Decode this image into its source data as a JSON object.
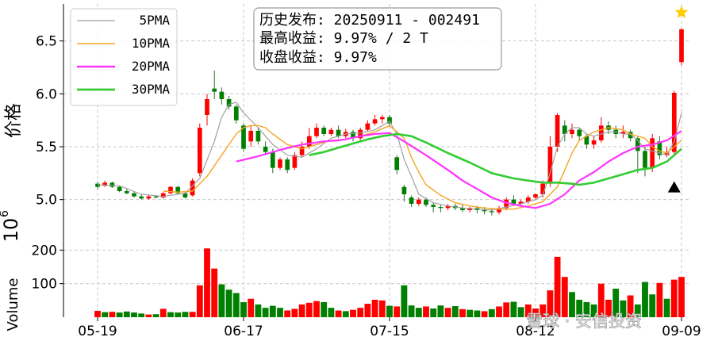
{
  "chart_data": {
    "type": "candlestick",
    "x_ticks": [
      "05-19",
      "06-17",
      "07-15",
      "08-12",
      "09-09"
    ],
    "price_axis": {
      "label": "价格",
      "ticks": [
        5.0,
        5.5,
        6.0,
        6.5
      ],
      "range": [
        4.75,
        6.85
      ]
    },
    "volume_axis": {
      "label": "Volume",
      "exponent": "10",
      "exponent_power": "6",
      "ticks": [
        100,
        200
      ],
      "range": [
        0,
        260
      ]
    },
    "legend": [
      {
        "name": "5PMA",
        "color": "#a0a0a0"
      },
      {
        "name": "10PMA",
        "color": "#f5a623"
      },
      {
        "name": "20PMA",
        "color": "#ff33ff"
      },
      {
        "name": "30PMA",
        "color": "#33cc33"
      }
    ],
    "info_box": [
      "历史发布: 20250911 - 002491",
      "最高收益: 9.97% / 2 T",
      "收盘收益: 9.97%"
    ],
    "colors": {
      "up": "#ff0000",
      "down": "#008000"
    },
    "star_marker": {
      "date_index": 80,
      "price": 6.77,
      "color": "#ffcc00"
    },
    "triangle_marker": {
      "date_index": 79,
      "price": 5.12,
      "color": "#000000"
    },
    "candles": [
      [
        5.15,
        5.12,
        5.17,
        5.1
      ],
      [
        5.13,
        5.16,
        5.18,
        5.12
      ],
      [
        5.16,
        5.12,
        5.17,
        5.11
      ],
      [
        5.12,
        5.08,
        5.13,
        5.07
      ],
      [
        5.08,
        5.06,
        5.1,
        5.05
      ],
      [
        5.06,
        5.03,
        5.07,
        5.02
      ],
      [
        5.03,
        5.01,
        5.05,
        5.0
      ],
      [
        5.01,
        5.03,
        5.04,
        5.0
      ],
      [
        5.03,
        5.02,
        5.04,
        5.01
      ],
      [
        5.02,
        5.06,
        5.07,
        5.01
      ],
      [
        5.06,
        5.12,
        5.13,
        5.05
      ],
      [
        5.12,
        5.06,
        5.13,
        5.05
      ],
      [
        5.06,
        5.02,
        5.08,
        5.01
      ],
      [
        5.04,
        5.18,
        5.2,
        5.03
      ],
      [
        5.25,
        5.68,
        5.72,
        5.22
      ],
      [
        5.8,
        5.95,
        6.0,
        5.7
      ],
      [
        6.05,
        6.02,
        6.22,
        5.95
      ],
      [
        6.02,
        5.95,
        6.06,
        5.9
      ],
      [
        5.95,
        5.88,
        5.98,
        5.85
      ],
      [
        5.88,
        5.75,
        5.9,
        5.72
      ],
      [
        5.7,
        5.48,
        5.72,
        5.45
      ],
      [
        5.55,
        5.65,
        5.7,
        5.5
      ],
      [
        5.65,
        5.55,
        5.68,
        5.52
      ],
      [
        5.5,
        5.45,
        5.55,
        5.42
      ],
      [
        5.45,
        5.3,
        5.48,
        5.25
      ],
      [
        5.3,
        5.38,
        5.4,
        5.28
      ],
      [
        5.38,
        5.28,
        5.4,
        5.25
      ],
      [
        5.3,
        5.42,
        5.45,
        5.28
      ],
      [
        5.42,
        5.5,
        5.55,
        5.4
      ],
      [
        5.5,
        5.6,
        5.68,
        5.48
      ],
      [
        5.6,
        5.68,
        5.72,
        5.58
      ],
      [
        5.68,
        5.62,
        5.7,
        5.6
      ],
      [
        5.62,
        5.66,
        5.68,
        5.6
      ],
      [
        5.66,
        5.6,
        5.7,
        5.58
      ],
      [
        5.6,
        5.64,
        5.67,
        5.58
      ],
      [
        5.64,
        5.58,
        5.66,
        5.55
      ],
      [
        5.58,
        5.66,
        5.68,
        5.56
      ],
      [
        5.66,
        5.72,
        5.75,
        5.64
      ],
      [
        5.72,
        5.76,
        5.8,
        5.7
      ],
      [
        5.76,
        5.78,
        5.8,
        5.72
      ],
      [
        5.78,
        5.72,
        5.8,
        5.7
      ],
      [
        5.4,
        5.28,
        5.42,
        5.24
      ],
      [
        5.12,
        5.05,
        5.14,
        4.98
      ],
      [
        5.02,
        4.96,
        5.04,
        4.93
      ],
      [
        4.96,
        5.0,
        5.02,
        4.94
      ],
      [
        5.0,
        4.95,
        5.02,
        4.93
      ],
      [
        4.95,
        4.93,
        4.97,
        4.88
      ],
      [
        4.93,
        4.92,
        4.95,
        4.88
      ],
      [
        4.92,
        4.94,
        4.96,
        4.9
      ],
      [
        4.94,
        4.92,
        4.96,
        4.9
      ],
      [
        4.92,
        4.9,
        4.95,
        4.88
      ],
      [
        4.9,
        4.92,
        4.93,
        4.88
      ],
      [
        4.92,
        4.9,
        4.94,
        4.87
      ],
      [
        4.9,
        4.89,
        4.93,
        4.86
      ],
      [
        4.89,
        4.88,
        4.92,
        4.85
      ],
      [
        4.88,
        4.92,
        4.94,
        4.86
      ],
      [
        4.92,
        5.0,
        5.02,
        4.9
      ],
      [
        5.0,
        4.96,
        5.04,
        4.94
      ],
      [
        4.96,
        4.98,
        5.0,
        4.94
      ],
      [
        4.98,
        5.02,
        5.04,
        4.96
      ],
      [
        5.02,
        5.05,
        5.06,
        5.0
      ],
      [
        5.05,
        5.15,
        5.18,
        5.02
      ],
      [
        5.15,
        5.5,
        5.6,
        5.12
      ],
      [
        5.5,
        5.8,
        5.82,
        5.45
      ],
      [
        5.7,
        5.62,
        5.75,
        5.55
      ],
      [
        5.62,
        5.66,
        5.72,
        5.58
      ],
      [
        5.66,
        5.6,
        5.68,
        5.56
      ],
      [
        5.6,
        5.52,
        5.62,
        5.48
      ],
      [
        5.52,
        5.56,
        5.6,
        5.48
      ],
      [
        5.56,
        5.7,
        5.78,
        5.54
      ],
      [
        5.7,
        5.66,
        5.74,
        5.62
      ],
      [
        5.66,
        5.62,
        5.7,
        5.58
      ],
      [
        5.62,
        5.64,
        5.7,
        5.58
      ],
      [
        5.64,
        5.58,
        5.66,
        5.55
      ],
      [
        5.58,
        5.46,
        5.6,
        5.25
      ],
      [
        5.46,
        5.3,
        5.5,
        5.22
      ],
      [
        5.3,
        5.58,
        5.62,
        5.26
      ],
      [
        5.55,
        5.42,
        5.6,
        5.38
      ],
      [
        5.42,
        5.45,
        5.5,
        5.4
      ],
      [
        5.45,
        6.01,
        6.03,
        5.42
      ],
      [
        6.3,
        6.61,
        6.62,
        6.27
      ]
    ],
    "ma5": [
      [
        0,
        5.14
      ],
      [
        3,
        5.13
      ],
      [
        6,
        5.05
      ],
      [
        9,
        5.03
      ],
      [
        12,
        5.06
      ],
      [
        14,
        5.2
      ],
      [
        16,
        5.55
      ],
      [
        17,
        5.78
      ],
      [
        18,
        5.9
      ],
      [
        19,
        5.92
      ],
      [
        20,
        5.82
      ],
      [
        22,
        5.68
      ],
      [
        24,
        5.52
      ],
      [
        26,
        5.42
      ],
      [
        28,
        5.4
      ],
      [
        30,
        5.48
      ],
      [
        32,
        5.58
      ],
      [
        34,
        5.62
      ],
      [
        36,
        5.63
      ],
      [
        38,
        5.66
      ],
      [
        39,
        5.7
      ],
      [
        40,
        5.74
      ],
      [
        41,
        5.62
      ],
      [
        42,
        5.38
      ],
      [
        43,
        5.22
      ],
      [
        44,
        5.05
      ],
      [
        46,
        4.97
      ],
      [
        48,
        4.94
      ],
      [
        50,
        4.92
      ],
      [
        52,
        4.91
      ],
      [
        54,
        4.9
      ],
      [
        56,
        4.93
      ],
      [
        58,
        4.96
      ],
      [
        60,
        5.0
      ],
      [
        61,
        5.04
      ],
      [
        62,
        5.25
      ],
      [
        63,
        5.5
      ],
      [
        64,
        5.62
      ],
      [
        65,
        5.68
      ],
      [
        66,
        5.68
      ],
      [
        67,
        5.62
      ],
      [
        68,
        5.6
      ],
      [
        69,
        5.62
      ],
      [
        70,
        5.64
      ],
      [
        71,
        5.64
      ],
      [
        72,
        5.62
      ],
      [
        73,
        5.62
      ],
      [
        74,
        5.56
      ],
      [
        75,
        5.48
      ],
      [
        76,
        5.46
      ],
      [
        77,
        5.44
      ],
      [
        78,
        5.42
      ],
      [
        79,
        5.55
      ],
      [
        80,
        5.82
      ]
    ],
    "ma10": [
      [
        9,
        5.08
      ],
      [
        11,
        5.07
      ],
      [
        13,
        5.08
      ],
      [
        15,
        5.22
      ],
      [
        17,
        5.42
      ],
      [
        19,
        5.62
      ],
      [
        20,
        5.68
      ],
      [
        21,
        5.7
      ],
      [
        22,
        5.7
      ],
      [
        23,
        5.68
      ],
      [
        24,
        5.62
      ],
      [
        26,
        5.52
      ],
      [
        28,
        5.48
      ],
      [
        30,
        5.52
      ],
      [
        32,
        5.56
      ],
      [
        34,
        5.57
      ],
      [
        36,
        5.6
      ],
      [
        38,
        5.64
      ],
      [
        40,
        5.7
      ],
      [
        42,
        5.58
      ],
      [
        43,
        5.4
      ],
      [
        44,
        5.26
      ],
      [
        45,
        5.14
      ],
      [
        47,
        5.04
      ],
      [
        49,
        4.97
      ],
      [
        51,
        4.94
      ],
      [
        53,
        4.92
      ],
      [
        55,
        4.91
      ],
      [
        57,
        4.91
      ],
      [
        59,
        4.94
      ],
      [
        61,
        4.98
      ],
      [
        63,
        5.12
      ],
      [
        64,
        5.28
      ],
      [
        65,
        5.44
      ],
      [
        66,
        5.56
      ],
      [
        68,
        5.64
      ],
      [
        70,
        5.68
      ],
      [
        72,
        5.66
      ],
      [
        73,
        5.62
      ],
      [
        75,
        5.58
      ],
      [
        76,
        5.5
      ],
      [
        77,
        5.46
      ],
      [
        78,
        5.44
      ],
      [
        80,
        5.56
      ]
    ],
    "ma20": [
      [
        19,
        5.36
      ],
      [
        22,
        5.41
      ],
      [
        25,
        5.47
      ],
      [
        28,
        5.52
      ],
      [
        30,
        5.54
      ],
      [
        31,
        5.55
      ],
      [
        33,
        5.56
      ],
      [
        34,
        5.57
      ],
      [
        36,
        5.6
      ],
      [
        38,
        5.62
      ],
      [
        40,
        5.63
      ],
      [
        42,
        5.55
      ],
      [
        45,
        5.42
      ],
      [
        48,
        5.28
      ],
      [
        50,
        5.18
      ],
      [
        52,
        5.1
      ],
      [
        54,
        5.02
      ],
      [
        56,
        4.97
      ],
      [
        58,
        4.94
      ],
      [
        60,
        4.92
      ],
      [
        62,
        4.96
      ],
      [
        64,
        5.05
      ],
      [
        66,
        5.18
      ],
      [
        68,
        5.26
      ],
      [
        70,
        5.36
      ],
      [
        72,
        5.44
      ],
      [
        74,
        5.5
      ],
      [
        76,
        5.52
      ],
      [
        78,
        5.56
      ],
      [
        80,
        5.65
      ]
    ],
    "ma30": [
      [
        29,
        5.42
      ],
      [
        31,
        5.45
      ],
      [
        33,
        5.49
      ],
      [
        35,
        5.53
      ],
      [
        37,
        5.57
      ],
      [
        39,
        5.6
      ],
      [
        41,
        5.62
      ],
      [
        43,
        5.6
      ],
      [
        45,
        5.54
      ],
      [
        48,
        5.44
      ],
      [
        51,
        5.35
      ],
      [
        54,
        5.25
      ],
      [
        57,
        5.2
      ],
      [
        59,
        5.18
      ],
      [
        61,
        5.16
      ],
      [
        63,
        5.16
      ],
      [
        65,
        5.15
      ],
      [
        66,
        5.14
      ],
      [
        68,
        5.16
      ],
      [
        70,
        5.2
      ],
      [
        72,
        5.24
      ],
      [
        74,
        5.28
      ],
      [
        76,
        5.3
      ],
      [
        78,
        5.36
      ],
      [
        80,
        5.48
      ]
    ],
    "volume": [
      [
        19,
        1
      ],
      [
        15,
        0
      ],
      [
        16,
        1
      ],
      [
        14,
        0
      ],
      [
        17,
        0
      ],
      [
        14,
        0
      ],
      [
        11,
        0
      ],
      [
        8,
        1
      ],
      [
        9,
        0
      ],
      [
        25,
        1
      ],
      [
        15,
        0
      ],
      [
        14,
        0
      ],
      [
        16,
        0
      ],
      [
        16,
        1
      ],
      [
        95,
        1
      ],
      [
        205,
        1
      ],
      [
        145,
        1
      ],
      [
        98,
        0
      ],
      [
        82,
        0
      ],
      [
        72,
        0
      ],
      [
        45,
        0
      ],
      [
        55,
        1
      ],
      [
        38,
        0
      ],
      [
        28,
        0
      ],
      [
        34,
        0
      ],
      [
        28,
        0
      ],
      [
        20,
        1
      ],
      [
        25,
        1
      ],
      [
        38,
        1
      ],
      [
        43,
        1
      ],
      [
        48,
        1
      ],
      [
        45,
        0
      ],
      [
        28,
        0
      ],
      [
        20,
        1
      ],
      [
        18,
        0
      ],
      [
        22,
        1
      ],
      [
        28,
        1
      ],
      [
        40,
        1
      ],
      [
        52,
        1
      ],
      [
        50,
        1
      ],
      [
        34,
        0
      ],
      [
        32,
        1
      ],
      [
        95,
        0
      ],
      [
        35,
        0
      ],
      [
        28,
        0
      ],
      [
        32,
        1
      ],
      [
        26,
        0
      ],
      [
        35,
        0
      ],
      [
        28,
        1
      ],
      [
        33,
        0
      ],
      [
        24,
        1
      ],
      [
        22,
        0
      ],
      [
        20,
        0
      ],
      [
        18,
        1
      ],
      [
        24,
        0
      ],
      [
        32,
        1
      ],
      [
        44,
        1
      ],
      [
        46,
        0
      ],
      [
        30,
        0
      ],
      [
        38,
        1
      ],
      [
        26,
        1
      ],
      [
        38,
        1
      ],
      [
        80,
        1
      ],
      [
        180,
        1
      ],
      [
        120,
        1
      ],
      [
        75,
        0
      ],
      [
        52,
        0
      ],
      [
        45,
        0
      ],
      [
        38,
        0
      ],
      [
        100,
        1
      ],
      [
        52,
        1
      ],
      [
        85,
        0
      ],
      [
        50,
        0
      ],
      [
        65,
        1
      ],
      [
        38,
        0
      ],
      [
        105,
        0
      ],
      [
        68,
        0
      ],
      [
        102,
        1
      ],
      [
        55,
        0
      ],
      [
        112,
        1
      ],
      [
        120,
        1
      ]
    ]
  },
  "watermark": "雪球 · 安信投资"
}
